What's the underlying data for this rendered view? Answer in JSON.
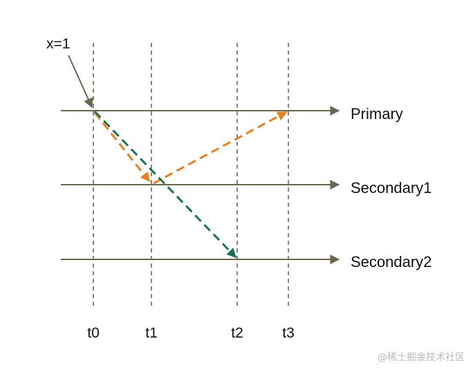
{
  "initial_write": {
    "label": "x=1"
  },
  "nodes": [
    {
      "id": "primary",
      "label": "Primary"
    },
    {
      "id": "secondary1",
      "label": "Secondary1"
    },
    {
      "id": "secondary2",
      "label": "Secondary2"
    }
  ],
  "times": [
    {
      "id": "t0",
      "label": "t0"
    },
    {
      "id": "t1",
      "label": "t1"
    },
    {
      "id": "t2",
      "label": "t2"
    },
    {
      "id": "t3",
      "label": "t3"
    }
  ],
  "messages": [
    {
      "from": "primary@t0",
      "to": "secondary1@t1",
      "color": "#E8801E"
    },
    {
      "from": "secondary1@t1",
      "to": "primary@t3",
      "color": "#E8801E"
    },
    {
      "from": "primary@t0",
      "to": "secondary2@t2",
      "color": "#177452"
    }
  ],
  "colors": {
    "axis": "#6b6650",
    "orange": "#E8801E",
    "green": "#177452",
    "text": "#111111"
  },
  "watermark": "@稀土掘金技术社区"
}
